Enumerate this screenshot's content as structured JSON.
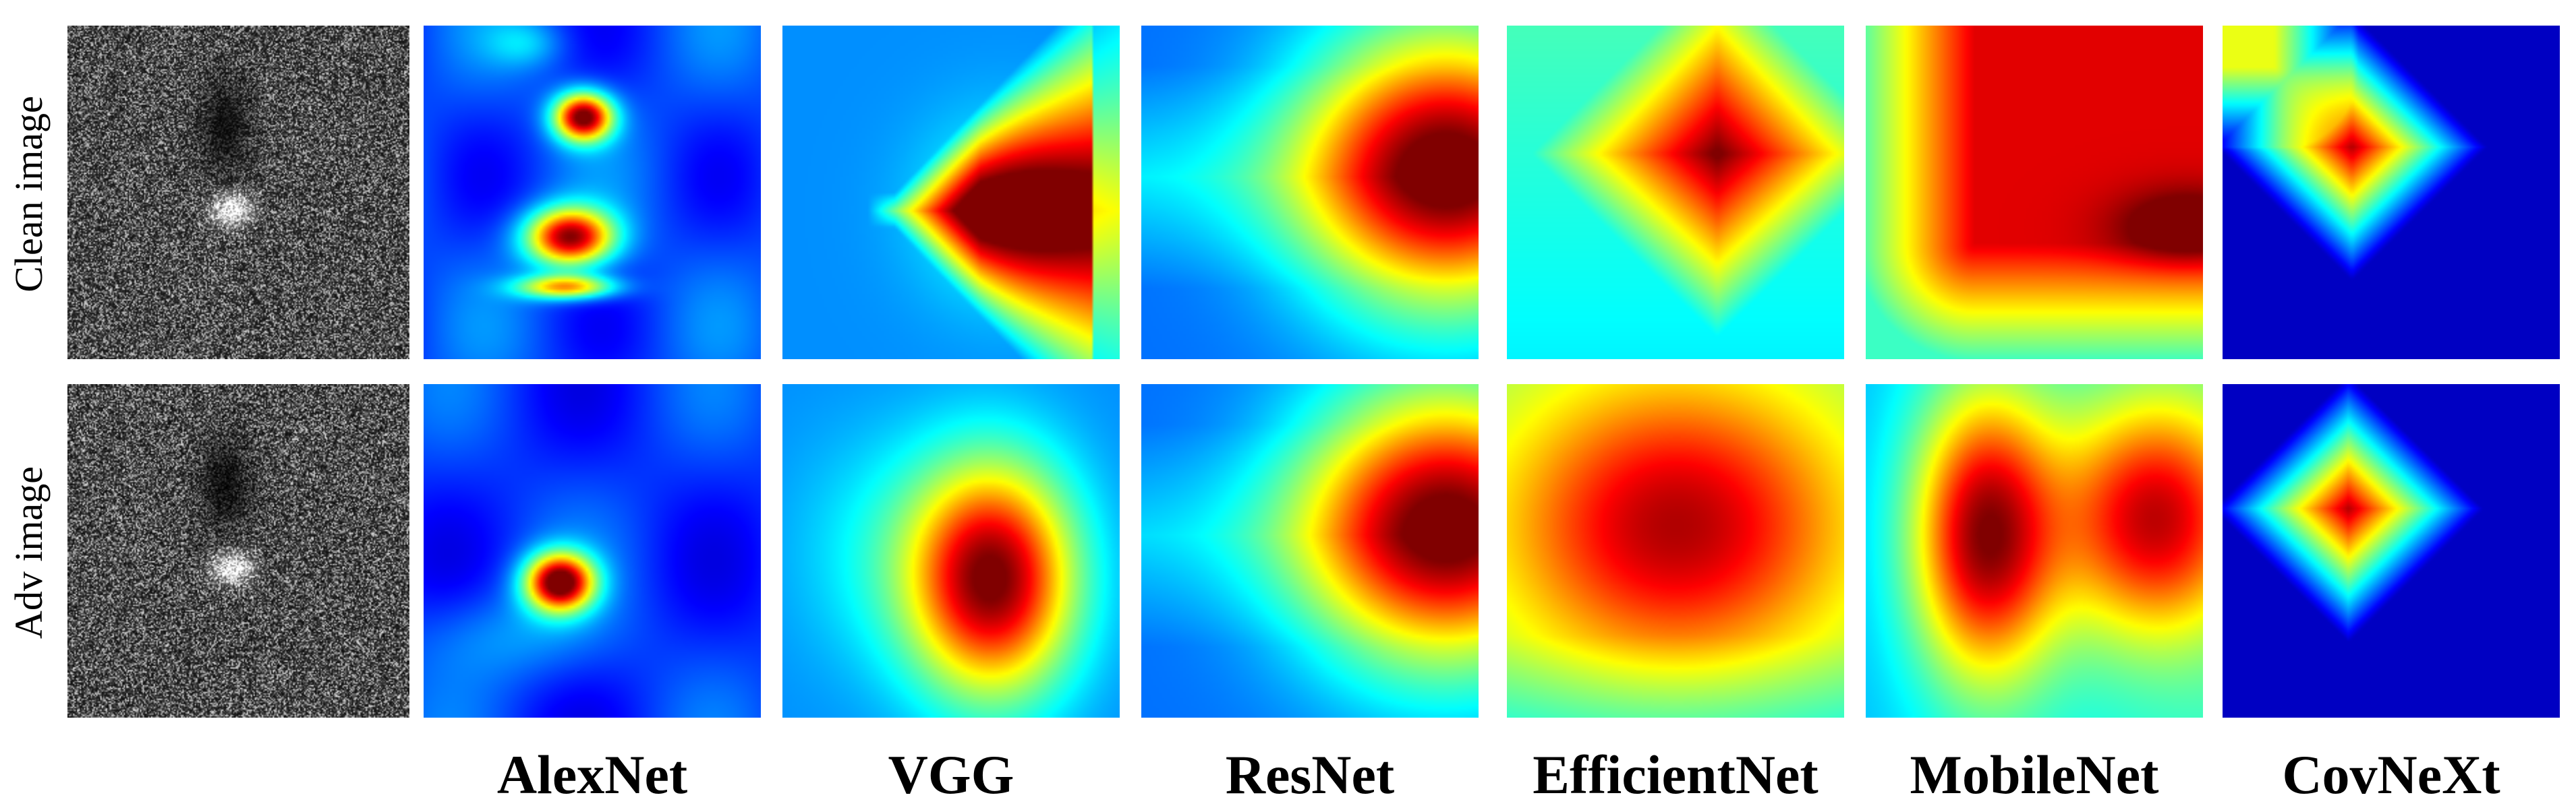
{
  "figure": {
    "row_labels": [
      "Clean image",
      "Adv image"
    ],
    "column_labels": [
      "AlexNet",
      "VGG",
      "ResNet",
      "EfficientNet",
      "MobileNet",
      "CovNeXt"
    ],
    "colormap": "jet",
    "colormap_stops": [
      "#00008f",
      "#0000ff",
      "#00ffff",
      "#ffff00",
      "#ff0000",
      "#800000"
    ],
    "input_image_style": "grayscale SAR speckle texture"
  }
}
